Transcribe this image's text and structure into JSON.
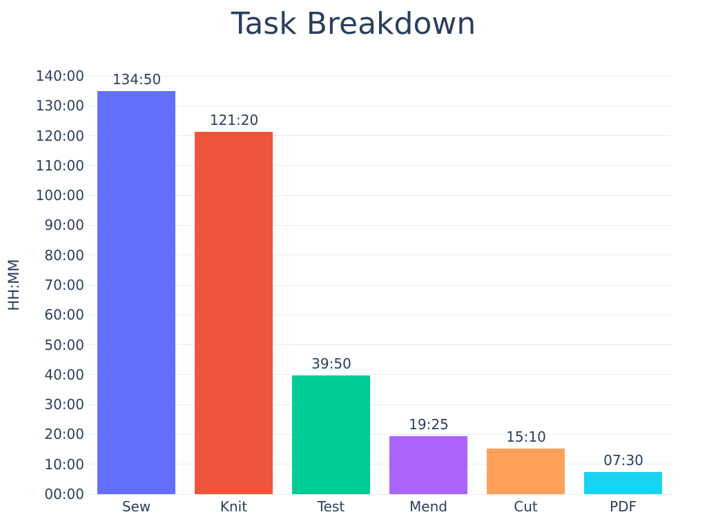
{
  "chart_data": {
    "type": "bar",
    "title": "Task Breakdown",
    "xlabel": "",
    "ylabel": "HH:MM",
    "categories": [
      "Sew",
      "Knit",
      "Test",
      "Mend",
      "Cut",
      "PDF"
    ],
    "values": [
      "134:50",
      "121:20",
      "39:50",
      "19:25",
      "15:10",
      "07:30"
    ],
    "value_minutes": [
      8090,
      7280,
      2390,
      1165,
      910,
      450
    ],
    "colors": [
      "#636EFA",
      "#EF553B",
      "#00CC96",
      "#AB63FA",
      "#FFA15A",
      "#19D3F3"
    ],
    "ytick_labels": [
      "00:00",
      "10:00",
      "20:00",
      "30:00",
      "40:00",
      "50:00",
      "60:00",
      "70:00",
      "80:00",
      "90:00",
      "100:00",
      "110:00",
      "120:00",
      "130:00",
      "140:00"
    ],
    "ytick_interval_minutes": 600,
    "ylim_minutes": [
      0,
      8400
    ],
    "grid": true,
    "legend": false,
    "bar_value_labels_position": "outside-top",
    "text_color": "#2a3f5f",
    "gridline_color": "#e7ecf5",
    "background_color": "#ffffff"
  }
}
